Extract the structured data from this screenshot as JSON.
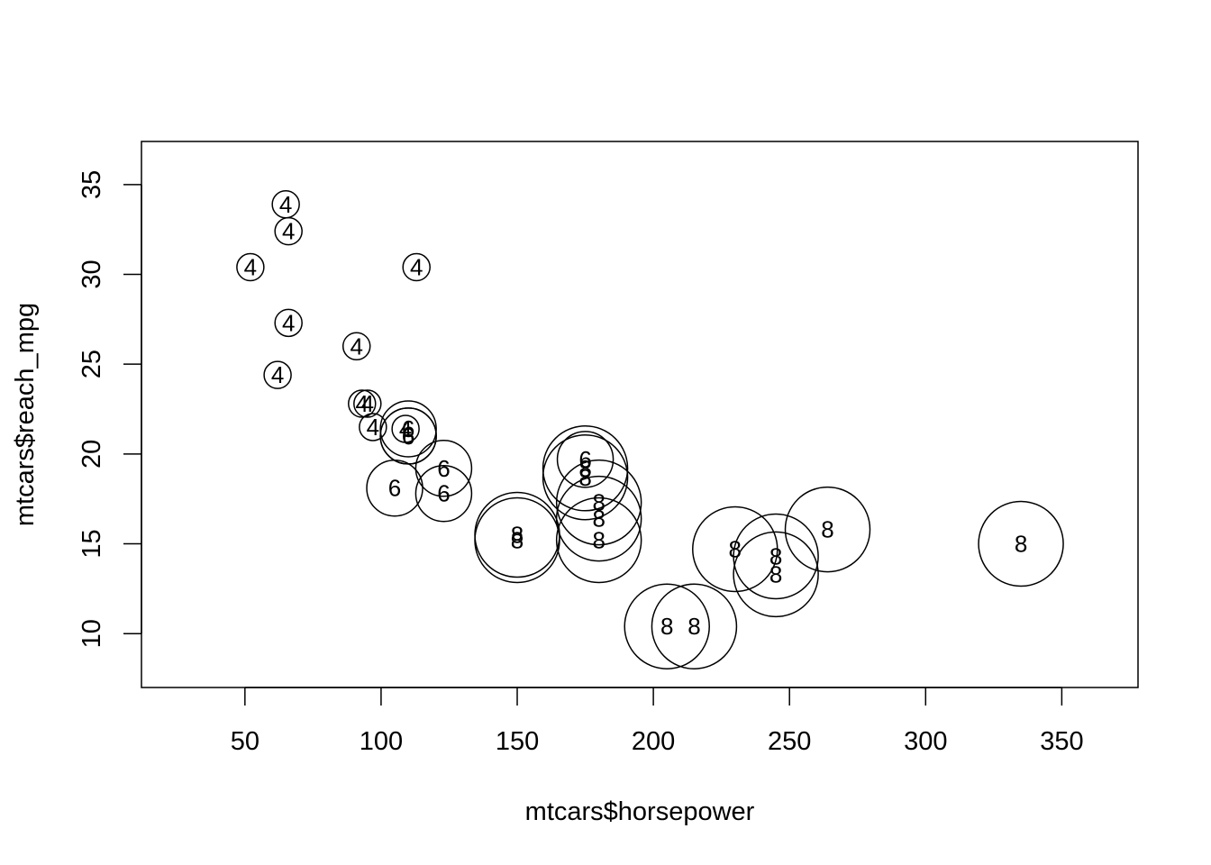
{
  "chart_data": {
    "type": "scatter",
    "title": "",
    "xlabel": "mtcars$horsepower",
    "ylabel": "mtcars$reach_mpg",
    "xlim": [
      12,
      378
    ],
    "ylim": [
      7.0,
      37.4
    ],
    "xticks": [
      50,
      100,
      150,
      200,
      250,
      300,
      350
    ],
    "yticks": [
      10,
      15,
      20,
      25,
      30,
      35
    ],
    "grid": false,
    "legend": "none",
    "marker": "circle sized by cylinder count, labeled with cylinder count",
    "points": [
      {
        "x": 110,
        "y": 21.0,
        "label": "6"
      },
      {
        "x": 110,
        "y": 21.0,
        "label": "6"
      },
      {
        "x": 93,
        "y": 22.8,
        "label": "4"
      },
      {
        "x": 110,
        "y": 21.4,
        "label": "6"
      },
      {
        "x": 175,
        "y": 18.7,
        "label": "8"
      },
      {
        "x": 105,
        "y": 18.1,
        "label": "6"
      },
      {
        "x": 245,
        "y": 14.3,
        "label": "8"
      },
      {
        "x": 62,
        "y": 24.4,
        "label": "4"
      },
      {
        "x": 95,
        "y": 22.8,
        "label": "4"
      },
      {
        "x": 123,
        "y": 19.2,
        "label": "6"
      },
      {
        "x": 123,
        "y": 17.8,
        "label": "6"
      },
      {
        "x": 180,
        "y": 16.4,
        "label": "8"
      },
      {
        "x": 180,
        "y": 17.3,
        "label": "8"
      },
      {
        "x": 180,
        "y": 15.2,
        "label": "8"
      },
      {
        "x": 205,
        "y": 10.4,
        "label": "8"
      },
      {
        "x": 215,
        "y": 10.4,
        "label": "8"
      },
      {
        "x": 230,
        "y": 14.7,
        "label": "8"
      },
      {
        "x": 66,
        "y": 32.4,
        "label": "4"
      },
      {
        "x": 52,
        "y": 30.4,
        "label": "4"
      },
      {
        "x": 65,
        "y": 33.9,
        "label": "4"
      },
      {
        "x": 97,
        "y": 21.5,
        "label": "4"
      },
      {
        "x": 150,
        "y": 15.5,
        "label": "8"
      },
      {
        "x": 150,
        "y": 15.2,
        "label": "8"
      },
      {
        "x": 245,
        "y": 13.3,
        "label": "8"
      },
      {
        "x": 175,
        "y": 19.2,
        "label": "8"
      },
      {
        "x": 66,
        "y": 27.3,
        "label": "4"
      },
      {
        "x": 91,
        "y": 26.0,
        "label": "4"
      },
      {
        "x": 113,
        "y": 30.4,
        "label": "4"
      },
      {
        "x": 264,
        "y": 15.8,
        "label": "8"
      },
      {
        "x": 175,
        "y": 19.7,
        "label": "6"
      },
      {
        "x": 335,
        "y": 15.0,
        "label": "8"
      },
      {
        "x": 109,
        "y": 21.4,
        "label": "4"
      }
    ]
  }
}
